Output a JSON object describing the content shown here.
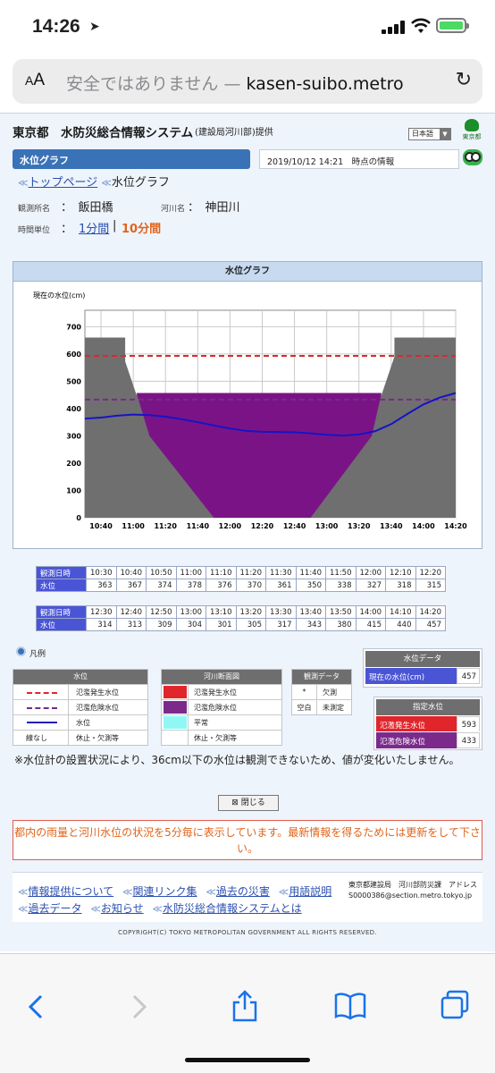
{
  "status_bar": {
    "time": "14:26",
    "location_arrow": "location-arrow-icon",
    "battery_color": "#4cd964"
  },
  "browser": {
    "text_size_button": "AA",
    "warning_text": "安全ではありません — ",
    "domain_text": "kasen-suibo.metro"
  },
  "header": {
    "title": "東京都　水防災総合情報システム",
    "provider": "(建設局河川部)提供",
    "language": "日本語",
    "logo_text": "東京都"
  },
  "section_bar": {
    "label": "水位グラフ",
    "info": "2019/10/12 14:21　時点の情報"
  },
  "breadcrumb": {
    "top_link": "トップページ",
    "current": "水位グラフ"
  },
  "station": {
    "station_label": "観測所名",
    "station_value": "：　飯田橋",
    "river_label": "河川名",
    "river_value": "：　神田川",
    "unit_label": "時間単位",
    "unit_sep": "：",
    "unit_1min": "1分間",
    "unit_divider": "|",
    "unit_10min": "10分間"
  },
  "graph_panel": {
    "header": "水位グラフ",
    "y_label": "現在の水位(cm)"
  },
  "chart_data": {
    "type": "line",
    "x_ticks": [
      "10:40",
      "11:00",
      "11:20",
      "11:40",
      "12:00",
      "12:20",
      "12:40",
      "13:00",
      "13:20",
      "13:40",
      "14:00",
      "14:20"
    ],
    "y_ticks": [
      "0",
      "100",
      "200",
      "300",
      "400",
      "500",
      "600",
      "700"
    ],
    "ylim": [
      0,
      760
    ],
    "xlim_minutes": [
      30,
      260
    ],
    "series": [
      {
        "key": "water_level",
        "color": "#1414c8",
        "x": [
          "10:30",
          "10:40",
          "10:50",
          "11:00",
          "11:10",
          "11:20",
          "11:30",
          "11:40",
          "11:50",
          "12:00",
          "12:10",
          "12:20",
          "12:30",
          "12:40",
          "12:50",
          "13:00",
          "13:10",
          "13:20",
          "13:30",
          "13:40",
          "13:50",
          "14:00",
          "14:10",
          "14:20"
        ],
        "values": [
          363,
          367,
          374,
          378,
          376,
          370,
          361,
          350,
          338,
          327,
          318,
          315,
          314,
          313,
          309,
          304,
          301,
          305,
          317,
          343,
          380,
          415,
          440,
          457
        ]
      }
    ],
    "flood_warning_level": 593,
    "flood_danger_level": 433,
    "warning_color": "#e0262b",
    "danger_color": "#7b2a8c",
    "river_fill_color": "#7a1486",
    "bank_color": "#6f6f6f",
    "grid": true
  },
  "table1": {
    "time_label": "観測日時",
    "level_label": "水位",
    "times": [
      "10:30",
      "10:40",
      "10:50",
      "11:00",
      "11:10",
      "11:20",
      "11:30",
      "11:40",
      "11:50",
      "12:00",
      "12:10",
      "12:20"
    ],
    "levels": [
      "363",
      "367",
      "374",
      "378",
      "376",
      "370",
      "361",
      "350",
      "338",
      "327",
      "318",
      "315"
    ]
  },
  "table2": {
    "time_label": "観測日時",
    "level_label": "水位",
    "times": [
      "12:30",
      "12:40",
      "12:50",
      "13:00",
      "13:10",
      "13:20",
      "13:30",
      "13:40",
      "13:50",
      "14:00",
      "14:10",
      "14:20"
    ],
    "levels": [
      "314",
      "313",
      "309",
      "304",
      "301",
      "305",
      "317",
      "343",
      "380",
      "415",
      "440",
      "457"
    ]
  },
  "legend": {
    "title": "凡例",
    "level_box": {
      "header": "水位",
      "rows": [
        "氾濫発生水位",
        "氾濫危険水位",
        "水位",
        "休止・欠測等"
      ],
      "no_line": "線なし"
    },
    "river_box": {
      "header": "河川断面図",
      "rows": [
        "氾濫発生水位",
        "氾濫危険水位",
        "平常",
        "休止・欠測等"
      ],
      "colors": [
        "#e0262b",
        "#7b2a8c",
        "#8ff7f4",
        "#ffffff"
      ]
    },
    "obs_box": {
      "header": "観測データ",
      "rows": [
        [
          "*",
          "欠測"
        ],
        [
          "空白",
          "未測定"
        ]
      ]
    }
  },
  "water_data": {
    "header": "水位データ",
    "current_label": "現在の水位(cm)",
    "current_value": "457",
    "designated_header": "指定水位",
    "warning_label": "氾濫発生水位",
    "warning_value": "593",
    "danger_label": "氾濫危険水位",
    "danger_value": "433"
  },
  "note": "※水位計の設置状況により、36cm以下の水位は観測できないため、値が変化いたしません。",
  "close_button": "閉じる",
  "warning_message": "都内の雨量と河川水位の状況を5分毎に表示しています。最新情報を得るためには更新をして下さい。",
  "footer": {
    "links_row1": [
      "情報提供について",
      "関連リンク集",
      "過去の災害",
      "用語説明"
    ],
    "links_row2": [
      "過去データ",
      "お知らせ",
      "水防災総合情報システムとは"
    ],
    "address_line1": "東京都建設局　河川部防災課　アドレス",
    "address_line2": "S0000386@section.metro.tokyo.jp",
    "copyright": "COPYRIGHT(C) TOKYO METROPOLITAN GOVERNMENT ALL RIGHTS RESERVED."
  },
  "toolbar": {
    "back": "back-icon",
    "forward": "forward-icon",
    "share": "share-icon",
    "bookmarks": "bookmarks-icon",
    "tabs": "tabs-icon"
  }
}
